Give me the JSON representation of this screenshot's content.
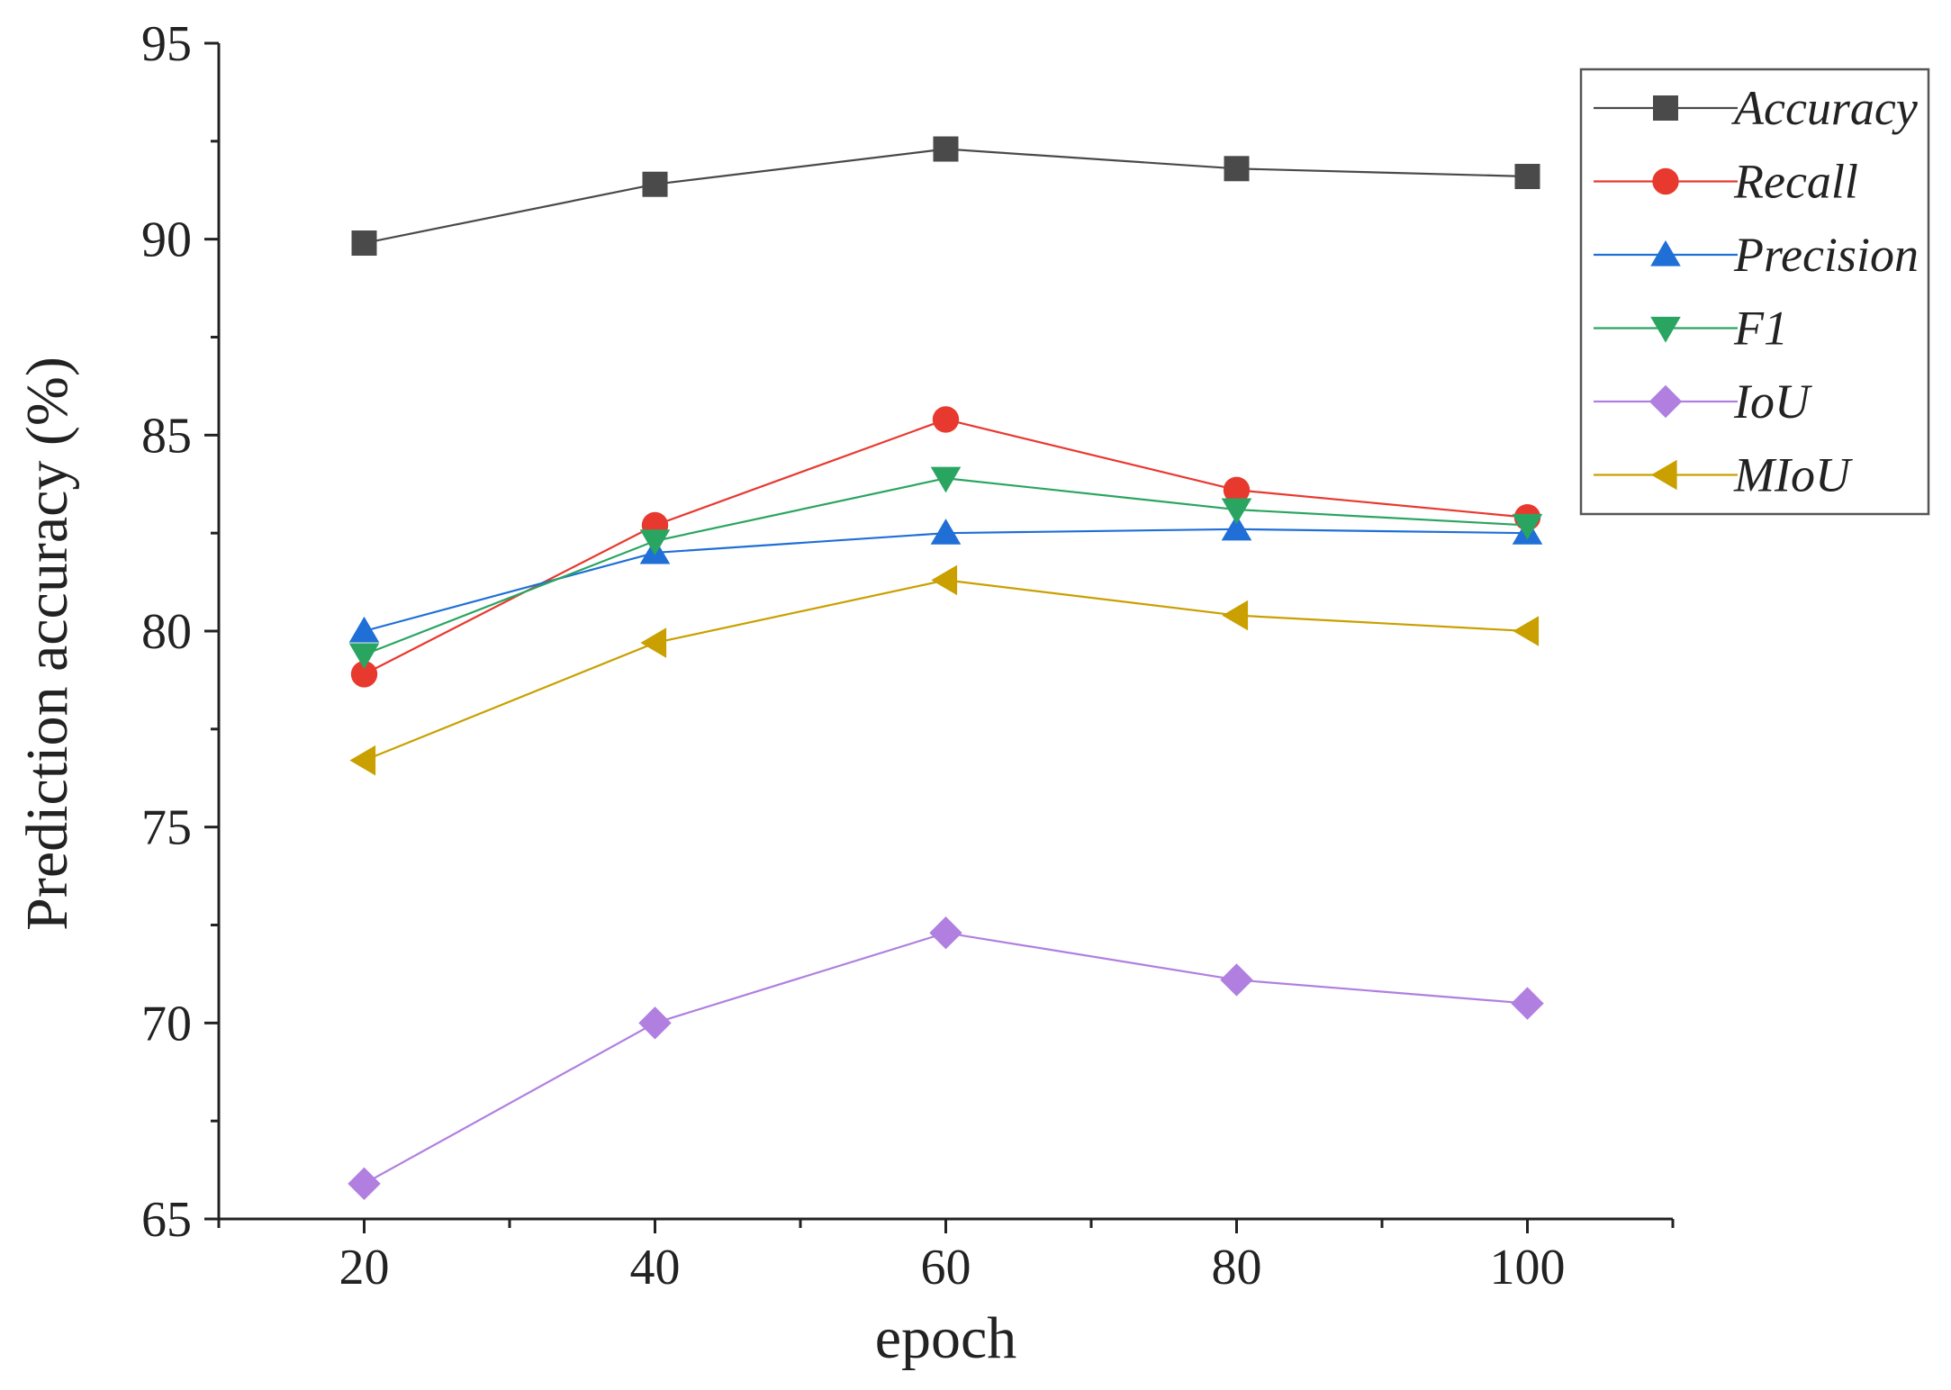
{
  "chart_data": {
    "type": "line",
    "xlabel": "epoch",
    "ylabel": "Prediction accuracy (%)",
    "x": [
      20,
      40,
      60,
      80,
      100
    ],
    "xticks": [
      "20",
      "40",
      "60",
      "80",
      "100"
    ],
    "xlim": [
      10,
      110
    ],
    "ylim": [
      65,
      95
    ],
    "yticks": [
      "65",
      "70",
      "75",
      "80",
      "85",
      "90",
      "95"
    ],
    "legend_position": "top-right",
    "series": [
      {
        "name": "Accuracy",
        "marker": "square",
        "color": "#4a4a4a",
        "values": [
          89.9,
          91.4,
          92.3,
          91.8,
          91.6
        ]
      },
      {
        "name": "Recall",
        "marker": "circle",
        "color": "#e8392f",
        "values": [
          78.9,
          82.7,
          85.4,
          83.6,
          82.9
        ]
      },
      {
        "name": "Precision",
        "marker": "triangle-up",
        "color": "#1f6fd6",
        "values": [
          80.0,
          82.0,
          82.5,
          82.6,
          82.5
        ]
      },
      {
        "name": "F1",
        "marker": "triangle-down",
        "color": "#2aa561",
        "values": [
          79.4,
          82.3,
          83.9,
          83.1,
          82.7
        ]
      },
      {
        "name": "IoU",
        "marker": "diamond",
        "color": "#b07fe0",
        "values": [
          65.9,
          70.0,
          72.3,
          71.1,
          70.5
        ]
      },
      {
        "name": "MIoU",
        "marker": "triangle-left",
        "color": "#c9a000",
        "values": [
          76.7,
          79.7,
          81.3,
          80.4,
          80.0
        ]
      }
    ]
  }
}
